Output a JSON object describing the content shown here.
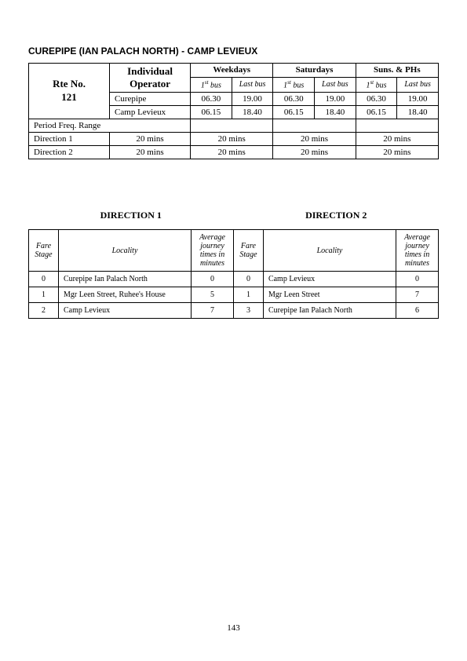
{
  "title": "CUREPIPE (IAN PALACH NORTH) - CAMP LEVIEUX",
  "route": {
    "label_line1": "Rte No.",
    "label_line2": "121"
  },
  "operator_header": "Individual Operator",
  "day_columns": [
    {
      "label": "Weekdays",
      "first_hdr": "1",
      "first_sup": "st",
      "first_suffix": " bus",
      "last_hdr": "Last bus"
    },
    {
      "label": "Saturdays",
      "first_hdr": "1",
      "first_sup": "st",
      "first_suffix": " bus",
      "last_hdr": "Last bus"
    },
    {
      "label": "Suns. & PHs",
      "first_hdr": "1",
      "first_sup": "st",
      "first_suffix": " bus",
      "last_hdr": "Last bus"
    }
  ],
  "origins": [
    {
      "name": "Curepipe",
      "times": [
        "06.30",
        "19.00",
        "06.30",
        "19.00",
        "06.30",
        "19.00"
      ]
    },
    {
      "name": "Camp Levieux",
      "times": [
        "06.15",
        "18.40",
        "06.15",
        "18.40",
        "06.15",
        "18.40"
      ]
    }
  ],
  "freq_label": "Period Freq. Range",
  "dir_rows": [
    {
      "label": "Direction 1",
      "values": [
        "20 mins",
        "20 mins",
        "20 mins",
        "20 mins"
      ]
    },
    {
      "label": "Direction 2",
      "values": [
        "20 mins",
        "20 mins",
        "20 mins",
        "20 mins"
      ]
    }
  ],
  "direction_headers": [
    "DIRECTION  1",
    "DIRECTION  2"
  ],
  "fare_headers": {
    "stage": "Fare\nStage",
    "locality": "Locality",
    "time": "Average journey times in minutes"
  },
  "fare_rows": [
    {
      "d1_stage": "0",
      "d1_loc": "Curepipe Ian Palach North",
      "d1_time": "0",
      "d2_stage": "0",
      "d2_loc": "Camp Levieux",
      "d2_time": "0"
    },
    {
      "d1_stage": "1",
      "d1_loc": "Mgr Leen Street, Ruhee's House",
      "d1_time": "5",
      "d2_stage": "1",
      "d2_loc": "Mgr Leen Street",
      "d2_time": "7"
    },
    {
      "d1_stage": "2",
      "d1_loc": "Camp Levieux",
      "d1_time": "7",
      "d2_stage": "3",
      "d2_loc": "Curepipe Ian Palach North",
      "d2_time": "6"
    }
  ],
  "page_number": "143",
  "col_widths": {
    "sched_route": "92px",
    "sched_op": "92px",
    "sched_time": "47px",
    "fare_stage": "38px",
    "fare_loc": "170px",
    "fare_time": "54px"
  }
}
